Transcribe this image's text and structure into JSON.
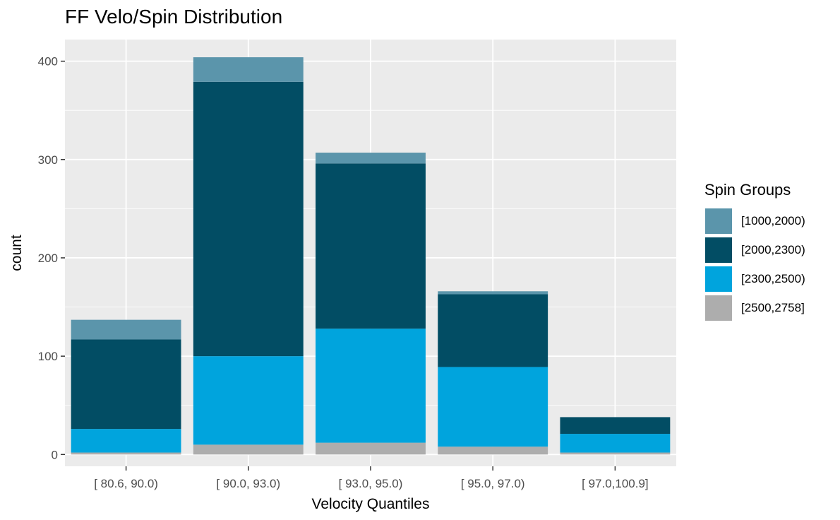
{
  "chart_data": {
    "type": "bar",
    "stacked": true,
    "title": "FF Velo/Spin Distribution",
    "xlabel": "Velocity Quantiles",
    "ylabel": "count",
    "ylim": [
      -12,
      422
    ],
    "yticks": [
      0,
      100,
      200,
      300,
      400
    ],
    "grid": true,
    "legend_title": "Spin Groups",
    "legend_position": "right",
    "categories": [
      "[ 80.6, 90.0)",
      "[ 90.0, 93.0)",
      "[ 93.0, 95.0)",
      "[ 95.0, 97.0)",
      "[ 97.0,100.9]"
    ],
    "series": [
      {
        "name": "[1000,2000)",
        "color": "#5b95ab",
        "values": [
          20,
          25,
          11,
          3,
          0
        ]
      },
      {
        "name": "[2000,2300)",
        "color": "#024d64",
        "values": [
          91,
          279,
          168,
          74,
          17
        ]
      },
      {
        "name": "[2300,2500)",
        "color": "#00a4dd",
        "values": [
          24,
          90,
          116,
          81,
          19
        ]
      },
      {
        "name": "[2500,2758]",
        "color": "#adadad",
        "values": [
          2,
          10,
          12,
          8,
          2
        ]
      }
    ],
    "panel_background": "#ebebeb",
    "grid_color": "#ffffff"
  }
}
